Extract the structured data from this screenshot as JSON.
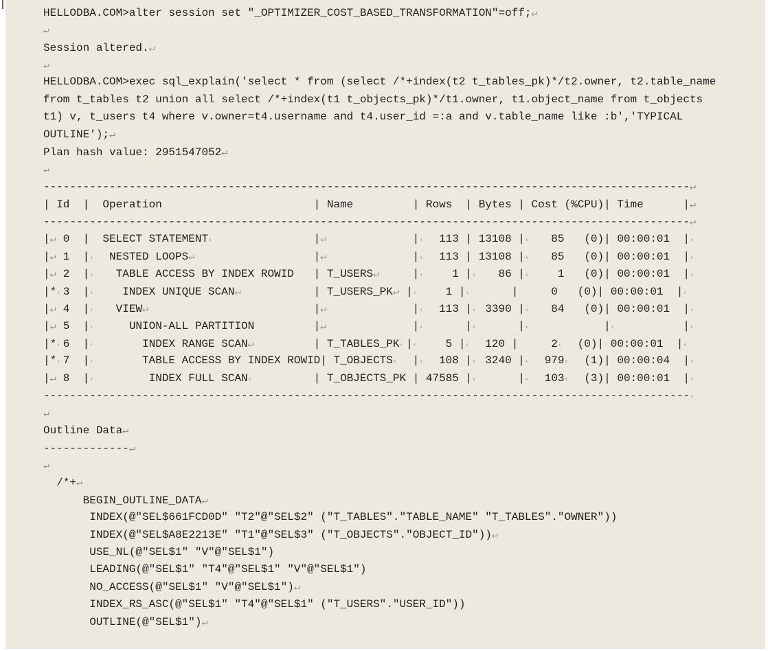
{
  "colors": {
    "panel_background": "#ECEADF",
    "text": "#1e1e1e",
    "formatting_mark": "#8f8f8f"
  },
  "prompt": "HELLODBA.COM>",
  "plan_hash_value": "2951547052",
  "plan_table": {
    "columns": [
      "Id",
      "Operation",
      "Name",
      "Rows",
      "Bytes",
      "Cost (%CPU)",
      "Time"
    ],
    "rows": [
      {
        "id": "0",
        "star": false,
        "operation": "SELECT STATEMENT",
        "name": "",
        "rows": "113",
        "bytes": "13108",
        "cost": "85   (0)",
        "time": "00:00:01"
      },
      {
        "id": "1",
        "star": false,
        "operation": "NESTED LOOPS",
        "name": "",
        "rows": "113",
        "bytes": "13108",
        "cost": "85   (0)",
        "time": "00:00:01"
      },
      {
        "id": "2",
        "star": false,
        "operation": "TABLE ACCESS BY INDEX ROWID",
        "name": "T_USERS",
        "rows": "1",
        "bytes": "86",
        "cost": "1   (0)",
        "time": "00:00:01"
      },
      {
        "id": "3",
        "star": true,
        "operation": "INDEX UNIQUE SCAN",
        "name": "T_USERS_PK",
        "rows": "1",
        "bytes": "",
        "cost": "0   (0)",
        "time": "00:00:01"
      },
      {
        "id": "4",
        "star": false,
        "operation": "VIEW",
        "name": "",
        "rows": "113",
        "bytes": "3390",
        "cost": "84   (0)",
        "time": "00:00:01"
      },
      {
        "id": "5",
        "star": false,
        "operation": "UNION-ALL PARTITION",
        "name": "",
        "rows": "",
        "bytes": "",
        "cost": "",
        "time": ""
      },
      {
        "id": "6",
        "star": true,
        "operation": "INDEX RANGE SCAN",
        "name": "T_TABLES_PK",
        "rows": "5",
        "bytes": "120",
        "cost": "2  (0)",
        "time": "00:00:01"
      },
      {
        "id": "7",
        "star": true,
        "operation": "TABLE ACCESS BY INDEX ROWID",
        "name": "T_OBJECTS",
        "rows": "108",
        "bytes": "3240",
        "cost": "979  (1)",
        "time": "00:00:04"
      },
      {
        "id": "8",
        "star": false,
        "operation": "INDEX FULL SCAN",
        "name": "T_OBJECTS_PK",
        "rows": "47585",
        "bytes": "",
        "cost": "103  (3)",
        "time": "00:00:01"
      }
    ]
  },
  "console": {
    "lines": [
      {
        "n": "cmd-alter-session",
        "seg": [
          [
            "t",
            "HELLODBA.COM>alter session set \"_OPTIMIZER_COST_BASED_TRANSFORMATION\"=off;"
          ],
          [
            "r"
          ]
        ]
      },
      {
        "n": "blank-line",
        "seg": [
          [
            "r"
          ]
        ]
      },
      {
        "n": "msg-session-altered",
        "seg": [
          [
            "t",
            "Session altered."
          ],
          [
            "r"
          ]
        ]
      },
      {
        "n": "blank-line",
        "seg": [
          [
            "r"
          ]
        ]
      },
      {
        "n": "cmd-exec-sql-explain-line1",
        "seg": [
          [
            "t",
            "HELLODBA.COM>exec sql_explain('select * from (select /*+index(t2 t_tables_pk)*/t2.owner, t2.table_name"
          ]
        ]
      },
      {
        "n": "cmd-exec-sql-explain-line2",
        "seg": [
          [
            "t",
            "from t_tables t2 union all select /*+index(t1 t_objects_pk)*/t1.owner, t1.object_name from t_objects"
          ]
        ]
      },
      {
        "n": "cmd-exec-sql-explain-line3",
        "seg": [
          [
            "t",
            "t1) v, t_users t4 where v.owner=t4.username and t4.user_id =:a and v.table_name like :b','TYPICAL"
          ]
        ]
      },
      {
        "n": "cmd-exec-sql-explain-line4",
        "seg": [
          [
            "t",
            "OUTLINE');"
          ],
          [
            "r"
          ]
        ]
      },
      {
        "n": "plan-hash-line",
        "seg": [
          [
            "t",
            "Plan hash value: 2951547052"
          ],
          [
            "r"
          ]
        ]
      },
      {
        "n": "blank-line",
        "seg": [
          [
            "r"
          ]
        ]
      },
      {
        "n": "plan-table-border-top",
        "seg": [
          [
            "t",
            "--------------------------------------------------------------------------------------------------"
          ],
          [
            "r"
          ]
        ]
      },
      {
        "n": "plan-table-header",
        "seg": [
          [
            "t",
            "| Id  |  Operation                       | Name         | Rows  | Bytes | Cost (%CPU)| Time      |"
          ],
          [
            "r"
          ]
        ]
      },
      {
        "n": "plan-table-border-mid",
        "seg": [
          [
            "t",
            "--------------------------------------------------------------------------------------------------"
          ],
          [
            "r"
          ]
        ]
      },
      {
        "n": "plan-row-0",
        "seg": [
          [
            "t",
            "|"
          ],
          [
            "r"
          ],
          [
            "t",
            " 0  |"
          ],
          [
            "t",
            "  SELECT STATEMENT"
          ],
          [
            "s"
          ],
          [
            "t",
            "               |"
          ],
          [
            "r"
          ],
          [
            "t",
            "             |"
          ],
          [
            "s"
          ],
          [
            "t",
            "  113 | 13108 |"
          ],
          [
            "s"
          ],
          [
            "t",
            "   85   (0)| 00:00:01  |"
          ],
          [
            "s"
          ]
        ]
      },
      {
        "n": "plan-row-1",
        "seg": [
          [
            "t",
            "|"
          ],
          [
            "r"
          ],
          [
            "t",
            " 1  |"
          ],
          [
            "s"
          ],
          [
            "t",
            "  NESTED LOOPS"
          ],
          [
            "r"
          ],
          [
            "t",
            "                  |"
          ],
          [
            "r"
          ],
          [
            "t",
            "             |"
          ],
          [
            "s"
          ],
          [
            "t",
            "  113 | 13108 |"
          ],
          [
            "s"
          ],
          [
            "t",
            "   85   (0)| 00:00:01  |"
          ],
          [
            "s"
          ]
        ]
      },
      {
        "n": "plan-row-2",
        "seg": [
          [
            "t",
            "|"
          ],
          [
            "r"
          ],
          [
            "t",
            " 2  |"
          ],
          [
            "s"
          ],
          [
            "t",
            "   TABLE ACCESS BY INDEX ROWID   | T_USERS"
          ],
          [
            "r"
          ],
          [
            "t",
            "     |"
          ],
          [
            "s"
          ],
          [
            "t",
            "    1 |"
          ],
          [
            "s"
          ],
          [
            "t",
            "   86 |"
          ],
          [
            "s"
          ],
          [
            "t",
            "    1   (0)| 00:00:01  |"
          ],
          [
            "s"
          ]
        ]
      },
      {
        "n": "plan-row-3",
        "seg": [
          [
            "t",
            "|*"
          ],
          [
            "s"
          ],
          [
            "t",
            "3  |"
          ],
          [
            "s"
          ],
          [
            "t",
            "    INDEX UNIQUE SCAN"
          ],
          [
            "r"
          ],
          [
            "t",
            "           | T_USERS_PK"
          ],
          [
            "r"
          ],
          [
            "t",
            " |"
          ],
          [
            "s"
          ],
          [
            "t",
            "    1 |"
          ],
          [
            "s"
          ],
          [
            "t",
            "      |"
          ],
          [
            "t",
            "     0   (0)| 00:00:01  |"
          ],
          [
            "s"
          ]
        ]
      },
      {
        "n": "plan-row-4",
        "seg": [
          [
            "t",
            "|"
          ],
          [
            "r"
          ],
          [
            "t",
            " 4  |"
          ],
          [
            "s"
          ],
          [
            "t",
            "   VIEW"
          ],
          [
            "r"
          ],
          [
            "t",
            "                         |"
          ],
          [
            "r"
          ],
          [
            "t",
            "             |"
          ],
          [
            "s"
          ],
          [
            "t",
            "  113 |"
          ],
          [
            "s"
          ],
          [
            "t",
            " 3390 |"
          ],
          [
            "s"
          ],
          [
            "t",
            "   84   (0)| 00:00:01  |"
          ],
          [
            "s"
          ]
        ]
      },
      {
        "n": "plan-row-5",
        "seg": [
          [
            "t",
            "|"
          ],
          [
            "r"
          ],
          [
            "t",
            " 5  |"
          ],
          [
            "s"
          ],
          [
            "t",
            "     UNION-ALL PARTITION         |"
          ],
          [
            "r"
          ],
          [
            "t",
            "             |"
          ],
          [
            "s"
          ],
          [
            "t",
            "      |"
          ],
          [
            "s"
          ],
          [
            "t",
            "      |"
          ],
          [
            "s"
          ],
          [
            "t",
            "           |"
          ],
          [
            "s"
          ],
          [
            "t",
            "          |"
          ],
          [
            "s"
          ]
        ]
      },
      {
        "n": "plan-row-6",
        "seg": [
          [
            "t",
            "|*"
          ],
          [
            "s"
          ],
          [
            "t",
            "6  |"
          ],
          [
            "s"
          ],
          [
            "t",
            "       INDEX RANGE SCAN"
          ],
          [
            "r"
          ],
          [
            "t",
            "         | T_TABLES_PK"
          ],
          [
            "s"
          ],
          [
            "t",
            "|"
          ],
          [
            "s"
          ],
          [
            "t",
            "    5 |"
          ],
          [
            "s"
          ],
          [
            "t",
            "  120 |"
          ],
          [
            "t",
            "     2"
          ],
          [
            "s"
          ],
          [
            "t",
            "  (0)| 00:00:01  |"
          ],
          [
            "s"
          ]
        ]
      },
      {
        "n": "plan-row-7",
        "seg": [
          [
            "t",
            "|*"
          ],
          [
            "s"
          ],
          [
            "t",
            "7  |"
          ],
          [
            "s"
          ],
          [
            "t",
            "       TABLE ACCESS BY INDEX ROWID| T_OBJECTS"
          ],
          [
            "s"
          ],
          [
            "t",
            "  |"
          ],
          [
            "s"
          ],
          [
            "t",
            "  108 |"
          ],
          [
            "s"
          ],
          [
            "t",
            " 3240 |"
          ],
          [
            "s"
          ],
          [
            "t",
            "  979"
          ],
          [
            "s"
          ],
          [
            "t",
            "  (1)| 00:00:04  |"
          ],
          [
            "s"
          ]
        ]
      },
      {
        "n": "plan-row-8",
        "seg": [
          [
            "t",
            "|"
          ],
          [
            "r"
          ],
          [
            "t",
            " 8  |"
          ],
          [
            "s"
          ],
          [
            "t",
            "        INDEX FULL SCAN"
          ],
          [
            "s"
          ],
          [
            "t",
            "         | T_OBJECTS_PK |"
          ],
          [
            "t",
            " 47585 |"
          ],
          [
            "s"
          ],
          [
            "t",
            "      |"
          ],
          [
            "s"
          ],
          [
            "t",
            "  103"
          ],
          [
            "s"
          ],
          [
            "t",
            "  (3)| 00:00:01  |"
          ],
          [
            "s"
          ]
        ]
      },
      {
        "n": "plan-table-border-bottom",
        "seg": [
          [
            "t",
            "--------------------------------------------------------------------------------------------------"
          ],
          [
            "s"
          ]
        ]
      },
      {
        "n": "blank-line",
        "seg": [
          [
            "r"
          ]
        ]
      },
      {
        "n": "outline-data-title",
        "seg": [
          [
            "t",
            "Outline Data"
          ],
          [
            "r"
          ]
        ]
      },
      {
        "n": "outline-data-underline",
        "seg": [
          [
            "t",
            "-------------"
          ],
          [
            "r"
          ]
        ]
      },
      {
        "n": "blank-line",
        "seg": [
          [
            "r"
          ]
        ]
      },
      {
        "n": "outline-hint-open",
        "seg": [
          [
            "t",
            "  /*+"
          ],
          [
            "r"
          ]
        ]
      },
      {
        "n": "outline-begin",
        "seg": [
          [
            "t",
            "      BEGIN_OUTLINE_DATA"
          ],
          [
            "r"
          ]
        ]
      },
      {
        "n": "outline-index-t2",
        "seg": [
          [
            "t",
            "       INDEX(@\"SEL$661FCD0D\" \"T2\"@\"SEL$2\" (\"T_TABLES\".\"TABLE_NAME\" \"T_TABLES\".\"OWNER\"))"
          ]
        ]
      },
      {
        "n": "outline-index-t1",
        "seg": [
          [
            "t",
            "       INDEX(@\"SEL$A8E2213E\" \"T1\"@\"SEL$3\" (\"T_OBJECTS\".\"OBJECT_ID\"))"
          ],
          [
            "r"
          ]
        ]
      },
      {
        "n": "outline-use-nl",
        "seg": [
          [
            "t",
            "       USE_NL(@\"SEL$1\" \"V\"@\"SEL$1\")"
          ]
        ]
      },
      {
        "n": "outline-leading",
        "seg": [
          [
            "t",
            "       LEADING(@\"SEL$1\" \"T4\"@\"SEL$1\" \"V\"@\"SEL$1\")"
          ]
        ]
      },
      {
        "n": "outline-no-access",
        "seg": [
          [
            "t",
            "       NO_ACCESS(@\"SEL$1\" \"V\"@\"SEL$1\")"
          ],
          [
            "r"
          ]
        ]
      },
      {
        "n": "outline-index-rs-asc",
        "seg": [
          [
            "t",
            "       INDEX_RS_ASC(@\"SEL$1\" \"T4\"@\"SEL$1\" (\"T_USERS\".\"USER_ID\"))"
          ]
        ]
      },
      {
        "n": "outline-outline",
        "seg": [
          [
            "t",
            "       OUTLINE(@\"SEL$1\")"
          ],
          [
            "r"
          ]
        ]
      }
    ]
  }
}
